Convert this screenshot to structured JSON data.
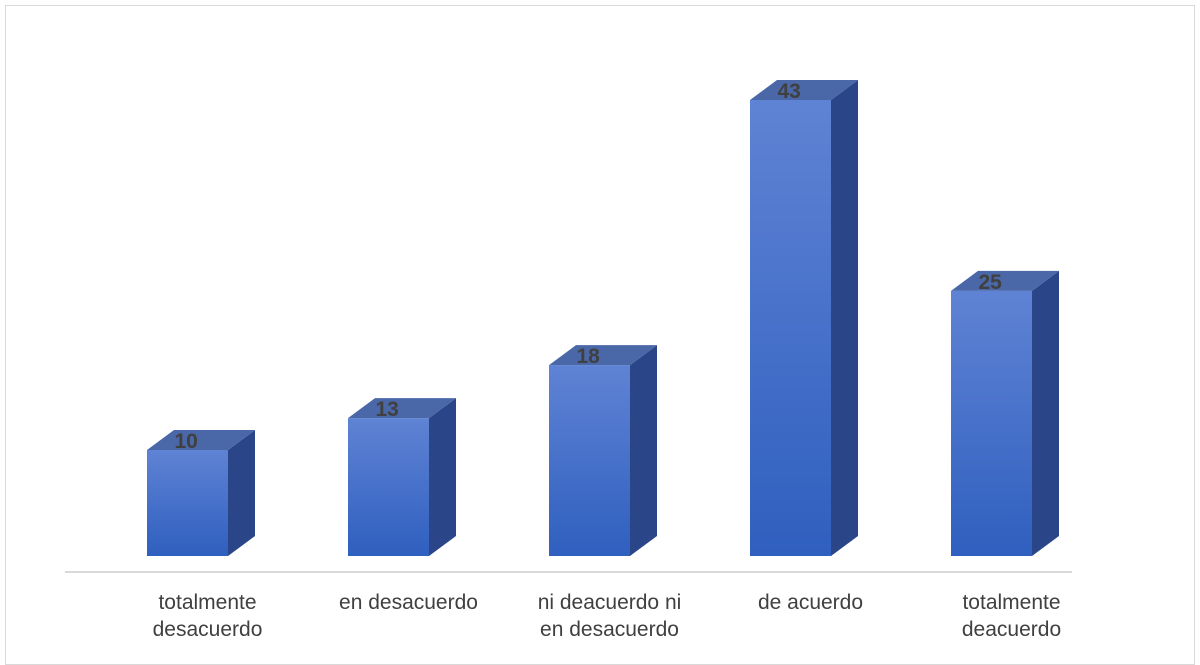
{
  "chart_data": {
    "type": "bar",
    "style": "3d-column",
    "title": "",
    "xlabel": "",
    "ylabel": "",
    "categories": [
      [
        "totalmente",
        "desacuerdo"
      ],
      [
        "en desacuerdo"
      ],
      [
        "ni deacuerdo ni",
        "en desacuerdo"
      ],
      [
        "de acuerdo"
      ],
      [
        "totalmente",
        "deacuerdo"
      ]
    ],
    "values": [
      10,
      13,
      18,
      43,
      25
    ],
    "ylim": [
      0,
      43
    ],
    "grid": false,
    "legend": "none",
    "colors": {
      "front_top": "#5f83d4",
      "front_bottom": "#2f5fbf",
      "side": "#2a4689",
      "top": "#4a67a8",
      "axis": "#d9d9d9",
      "text": "#404040"
    }
  }
}
